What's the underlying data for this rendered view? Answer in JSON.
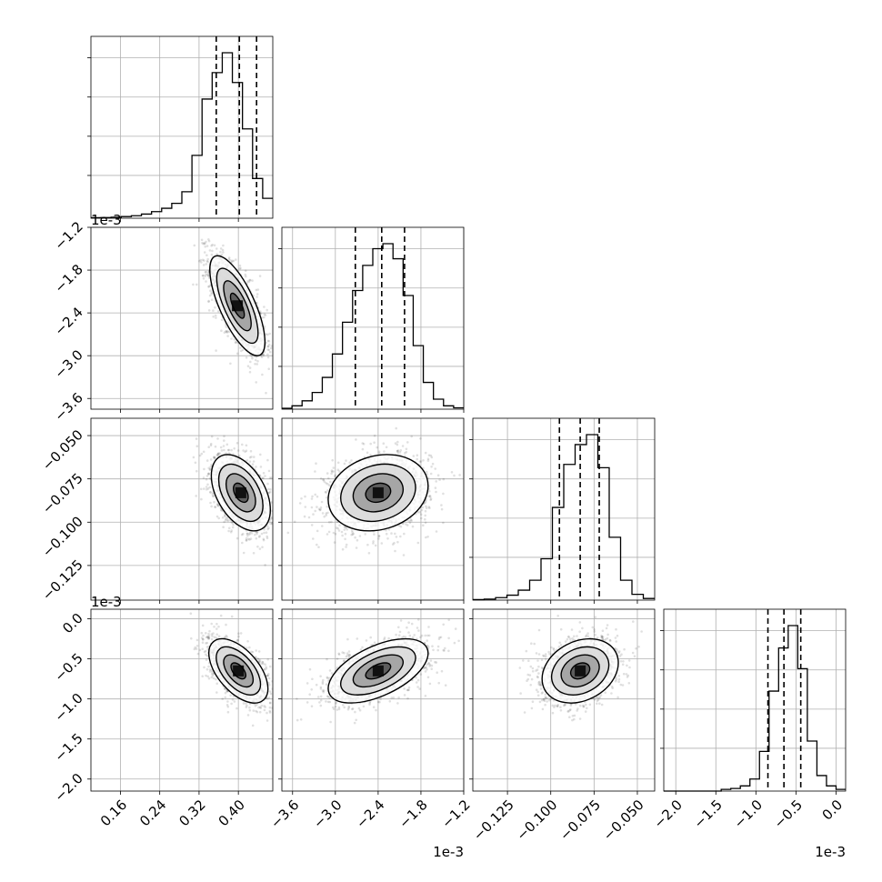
{
  "chart_data": {
    "type": "corner",
    "parameters": [
      {
        "range": [
          0.1,
          0.47
        ],
        "quantiles": [
          0.355,
          0.402,
          0.437
        ],
        "offset_label": "",
        "hist": [
          0.3,
          0.4,
          0.6,
          1,
          1.5,
          2.5,
          4,
          6,
          9,
          16,
          38,
          72,
          88,
          100,
          82,
          54,
          24,
          12
        ]
      },
      {
        "range": [
          -3.75,
          -1.2
        ],
        "quantiles": [
          -2.72,
          -2.35,
          -2.03
        ],
        "offset_label": "1e-3",
        "hist": [
          0.5,
          2,
          5,
          10,
          19,
          33,
          52,
          71,
          86,
          96,
          99,
          90,
          68,
          38,
          16,
          6,
          2,
          0.8
        ]
      },
      {
        "range": [
          -0.145,
          -0.04
        ],
        "quantiles": [
          -0.095,
          -0.083,
          -0.072
        ],
        "offset_label": "",
        "hist": [
          0.3,
          0.6,
          1.5,
          3,
          6,
          12,
          25,
          56,
          82,
          94,
          100,
          80,
          38,
          12,
          3.5,
          1
        ]
      },
      {
        "range": [
          -2.15,
          0.12
        ],
        "quantiles": [
          -0.85,
          -0.65,
          -0.44
        ],
        "offset_label": "1e-3",
        "hist": [
          0,
          0,
          0,
          0,
          0,
          0,
          1,
          1.5,
          3,
          7,
          23,
          58,
          83,
          96,
          71,
          29,
          9,
          3,
          1
        ]
      }
    ],
    "ticks": [
      {
        "values": [
          0.16,
          0.24,
          0.32,
          0.4
        ],
        "labels": [
          "0.16",
          "0.24",
          "0.32",
          "0.40"
        ]
      },
      {
        "values": [
          -3.6,
          -3.0,
          -2.4,
          -1.8,
          -1.2
        ],
        "labels": [
          "−3.6",
          "−3.0",
          "−2.4",
          "−1.8",
          "−1.2"
        ]
      },
      {
        "values": [
          -0.125,
          -0.1,
          -0.075,
          -0.05
        ],
        "labels": [
          "−0.125",
          "−0.100",
          "−0.075",
          "−0.050"
        ]
      },
      {
        "values": [
          -2.0,
          -1.5,
          -1.0,
          -0.5,
          0.0
        ],
        "labels": [
          "−2.0",
          "−1.5",
          "−1.0",
          "−0.5",
          "0.0"
        ]
      }
    ],
    "pairs": [
      {
        "x": 0,
        "y": 1,
        "center": [
          0.398,
          -2.3
        ],
        "sd": [
          0.028,
          0.35
        ],
        "corr": -0.72
      },
      {
        "x": 0,
        "y": 2,
        "center": [
          0.405,
          -0.083
        ],
        "sd": [
          0.03,
          0.011
        ],
        "corr": -0.45
      },
      {
        "x": 1,
        "y": 2,
        "center": [
          -2.4,
          -0.083
        ],
        "sd": [
          0.35,
          0.011
        ],
        "corr": 0.18
      },
      {
        "x": 0,
        "y": 3,
        "center": [
          0.4,
          -0.65
        ],
        "sd": [
          0.03,
          0.2
        ],
        "corr": -0.55
      },
      {
        "x": 1,
        "y": 3,
        "center": [
          -2.4,
          -0.65
        ],
        "sd": [
          0.35,
          0.2
        ],
        "corr": 0.55
      },
      {
        "x": 2,
        "y": 3,
        "center": [
          -0.083,
          -0.65
        ],
        "sd": [
          0.011,
          0.2
        ],
        "corr": 0.25
      }
    ],
    "contour_levels": [
      0.118,
      0.393,
      0.675,
      0.865
    ],
    "grid": true,
    "quantile_line_style": "dashed"
  }
}
